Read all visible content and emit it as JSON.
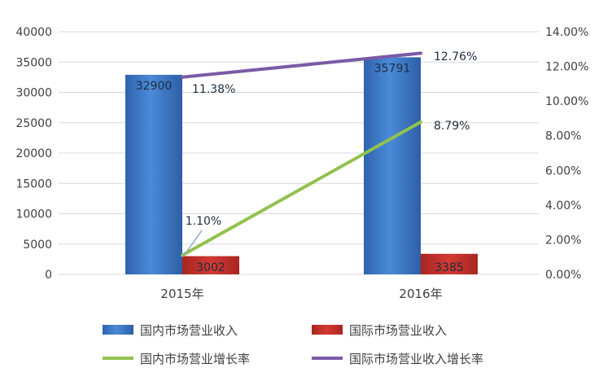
{
  "chart_data": {
    "type": "bar",
    "categories": [
      "2015年",
      "2016年"
    ],
    "series": [
      {
        "name": "国内市场营业收入",
        "kind": "bar",
        "axis": "left",
        "color": "#3d7ad0",
        "values": [
          32900,
          35791
        ],
        "labels": [
          "32900",
          "35791"
        ]
      },
      {
        "name": "国际市场营业收入",
        "kind": "bar",
        "axis": "left",
        "color": "#c8312c",
        "values": [
          3002,
          3385
        ],
        "labels": [
          "3002",
          "3385"
        ]
      },
      {
        "name": "国内市场营业增长率",
        "kind": "line",
        "axis": "right",
        "color": "#92c24f",
        "values": [
          1.1,
          8.79
        ],
        "labels": [
          "1.10%",
          "8.79%"
        ]
      },
      {
        "name": "国际市场营业收入增长率",
        "kind": "line",
        "axis": "right",
        "color": "#7b5aa6",
        "values": [
          11.38,
          12.76
        ],
        "labels": [
          "11.38%",
          "12.76%"
        ]
      }
    ],
    "y_left": {
      "min": 0,
      "max": 40000,
      "ticks": [
        "0",
        "5000",
        "10000",
        "15000",
        "20000",
        "25000",
        "30000",
        "35000",
        "40000"
      ]
    },
    "y_right": {
      "min": 0,
      "max": 14,
      "ticks": [
        "0.00%",
        "2.00%",
        "4.00%",
        "6.00%",
        "8.00%",
        "10.00%",
        "12.00%",
        "14.00%"
      ]
    },
    "grid": true,
    "legend_position": "bottom"
  }
}
